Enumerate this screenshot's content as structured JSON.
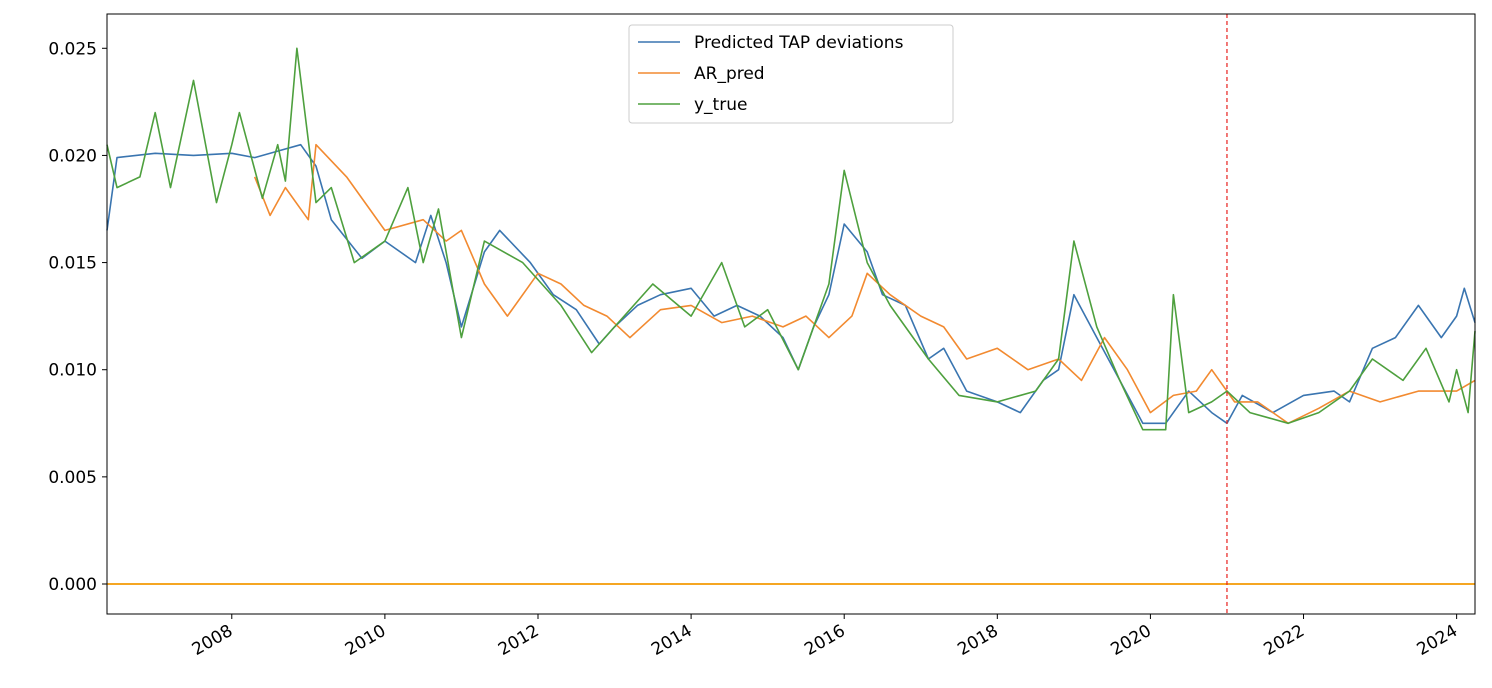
{
  "chart_data": {
    "type": "line",
    "title": "",
    "xlabel": "",
    "ylabel": "",
    "xlim": [
      2006.37,
      2024.24
    ],
    "ylim": [
      -0.0014,
      0.0266
    ],
    "grid": false,
    "legend_placement": "upper center",
    "x_ticks": [
      2008,
      2010,
      2012,
      2014,
      2016,
      2018,
      2020,
      2022,
      2024
    ],
    "x_tick_labels": [
      "2008",
      "2010",
      "2012",
      "2014",
      "2016",
      "2018",
      "2020",
      "2022",
      "2024"
    ],
    "y_ticks": [
      0.0,
      0.005,
      0.01,
      0.015,
      0.02,
      0.025
    ],
    "y_tick_labels": [
      "0.000",
      "0.005",
      "0.010",
      "0.015",
      "0.020",
      "0.025"
    ],
    "vertical_line": {
      "x": 2021.0,
      "color": "#e8211d",
      "style": "dashed"
    },
    "horizontal_line": {
      "y": 0.0,
      "color": "#f5a623"
    },
    "series": [
      {
        "name": "Predicted TAP deviations",
        "color": "#3a75b0",
        "x": [
          2006.37,
          2006.5,
          2007.0,
          2007.5,
          2008.0,
          2008.3,
          2008.6,
          2008.9,
          2009.1,
          2009.3,
          2009.7,
          2010.0,
          2010.4,
          2010.6,
          2010.8,
          2011.0,
          2011.3,
          2011.5,
          2011.9,
          2012.2,
          2012.5,
          2012.8,
          2013.0,
          2013.3,
          2013.6,
          2014.0,
          2014.3,
          2014.6,
          2014.9,
          2015.2,
          2015.4,
          2015.6,
          2015.8,
          2016.0,
          2016.3,
          2016.5,
          2016.8,
          2017.1,
          2017.3,
          2017.6,
          2018.0,
          2018.3,
          2018.6,
          2018.8,
          2019.0,
          2019.3,
          2019.6,
          2019.9,
          2020.2,
          2020.5,
          2020.8,
          2021.0,
          2021.2,
          2021.6,
          2022.0,
          2022.4,
          2022.6,
          2022.9,
          2023.2,
          2023.5,
          2023.8,
          2024.0,
          2024.1,
          2024.24
        ],
        "y": [
          0.0165,
          0.0199,
          0.0201,
          0.02,
          0.0201,
          0.0199,
          0.0202,
          0.0205,
          0.0195,
          0.017,
          0.0152,
          0.016,
          0.015,
          0.0172,
          0.015,
          0.012,
          0.0155,
          0.0165,
          0.015,
          0.0135,
          0.0128,
          0.0112,
          0.012,
          0.013,
          0.0135,
          0.0138,
          0.0125,
          0.013,
          0.0125,
          0.0115,
          0.01,
          0.012,
          0.0135,
          0.0168,
          0.0155,
          0.0135,
          0.013,
          0.0105,
          0.011,
          0.009,
          0.0085,
          0.008,
          0.0095,
          0.01,
          0.0135,
          0.0115,
          0.0095,
          0.0075,
          0.0075,
          0.009,
          0.008,
          0.0075,
          0.0088,
          0.008,
          0.0088,
          0.009,
          0.0085,
          0.011,
          0.0115,
          0.013,
          0.0115,
          0.0125,
          0.0138,
          0.0122
        ]
      },
      {
        "name": "AR_pred",
        "color": "#f28a30",
        "x": [
          2008.3,
          2008.5,
          2008.7,
          2009.0,
          2009.1,
          2009.5,
          2009.8,
          2010.0,
          2010.5,
          2010.8,
          2011.0,
          2011.3,
          2011.6,
          2012.0,
          2012.3,
          2012.6,
          2012.9,
          2013.2,
          2013.6,
          2014.0,
          2014.4,
          2014.8,
          2015.2,
          2015.5,
          2015.8,
          2016.1,
          2016.3,
          2016.6,
          2017.0,
          2017.3,
          2017.6,
          2018.0,
          2018.4,
          2018.8,
          2019.1,
          2019.4,
          2019.7,
          2020.0,
          2020.3,
          2020.6,
          2020.8,
          2021.1,
          2021.4,
          2021.8,
          2022.2,
          2022.6,
          2023.0,
          2023.5,
          2024.0,
          2024.24
        ],
        "y": [
          0.019,
          0.0172,
          0.0185,
          0.017,
          0.0205,
          0.019,
          0.0175,
          0.0165,
          0.017,
          0.016,
          0.0165,
          0.014,
          0.0125,
          0.0145,
          0.014,
          0.013,
          0.0125,
          0.0115,
          0.0128,
          0.013,
          0.0122,
          0.0125,
          0.012,
          0.0125,
          0.0115,
          0.0125,
          0.0145,
          0.0135,
          0.0125,
          0.012,
          0.0105,
          0.011,
          0.01,
          0.0105,
          0.0095,
          0.0115,
          0.01,
          0.008,
          0.0088,
          0.009,
          0.01,
          0.0085,
          0.0085,
          0.0075,
          0.0082,
          0.009,
          0.0085,
          0.009,
          0.009,
          0.0095
        ]
      },
      {
        "name": "y_true",
        "color": "#4ea03e",
        "x": [
          2006.37,
          2006.5,
          2006.8,
          2007.0,
          2007.2,
          2007.5,
          2007.8,
          2008.0,
          2008.1,
          2008.4,
          2008.6,
          2008.7,
          2008.85,
          2009.1,
          2009.3,
          2009.6,
          2010.0,
          2010.3,
          2010.5,
          2010.7,
          2011.0,
          2011.3,
          2011.8,
          2012.3,
          2012.7,
          2013.0,
          2013.5,
          2014.0,
          2014.4,
          2014.7,
          2015.0,
          2015.4,
          2015.8,
          2016.0,
          2016.3,
          2016.6,
          2017.1,
          2017.5,
          2018.0,
          2018.5,
          2018.8,
          2019.0,
          2019.3,
          2019.6,
          2019.9,
          2020.2,
          2020.3,
          2020.5,
          2020.8,
          2021.0,
          2021.3,
          2021.8,
          2022.2,
          2022.6,
          2022.9,
          2023.3,
          2023.6,
          2023.9,
          2024.0,
          2024.15,
          2024.24
        ],
        "y": [
          0.0205,
          0.0185,
          0.019,
          0.022,
          0.0185,
          0.0235,
          0.0178,
          0.0205,
          0.022,
          0.018,
          0.0205,
          0.0188,
          0.025,
          0.0178,
          0.0185,
          0.015,
          0.016,
          0.0185,
          0.015,
          0.0175,
          0.0115,
          0.016,
          0.015,
          0.013,
          0.0108,
          0.012,
          0.014,
          0.0125,
          0.015,
          0.012,
          0.0128,
          0.01,
          0.014,
          0.0193,
          0.015,
          0.013,
          0.0105,
          0.0088,
          0.0085,
          0.009,
          0.0105,
          0.016,
          0.012,
          0.0095,
          0.0072,
          0.0072,
          0.0135,
          0.008,
          0.0085,
          0.009,
          0.008,
          0.0075,
          0.008,
          0.009,
          0.0105,
          0.0095,
          0.011,
          0.0085,
          0.01,
          0.008,
          0.0118
        ]
      }
    ]
  }
}
